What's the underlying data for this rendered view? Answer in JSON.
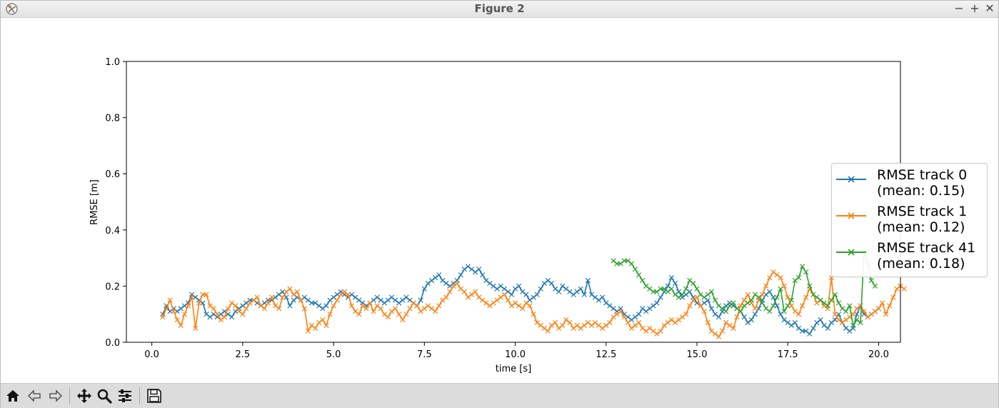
{
  "window": {
    "title": "Figure 2",
    "controls": {
      "minimize": "−",
      "maximize": "+",
      "close": "✕"
    }
  },
  "toolbar": {
    "buttons": [
      {
        "name": "home-button",
        "icon": "home-icon"
      },
      {
        "name": "back-button",
        "icon": "arrow-left-icon"
      },
      {
        "name": "forward-button",
        "icon": "arrow-right-icon"
      },
      {
        "name": "pan-button",
        "icon": "move-icon"
      },
      {
        "name": "zoom-button",
        "icon": "magnifier-icon"
      },
      {
        "name": "configure-subplots-button",
        "icon": "sliders-icon"
      },
      {
        "name": "save-button",
        "icon": "floppy-disk-icon"
      }
    ]
  },
  "chart_data": {
    "type": "line",
    "title": "",
    "xlabel": "time [s]",
    "ylabel": "RMSE [m]",
    "xlim": [
      -0.7,
      20.6
    ],
    "ylim": [
      0.0,
      1.0
    ],
    "x_ticks": [
      "0.0",
      "2.5",
      "5.0",
      "7.5",
      "10.0",
      "12.5",
      "15.0",
      "17.5",
      "20.0"
    ],
    "y_ticks": [
      "0.0",
      "0.2",
      "0.4",
      "0.6",
      "0.8",
      "1.0"
    ],
    "grid": false,
    "marker": "x",
    "legend_position": "center-right",
    "series": [
      {
        "name": "RMSE track 0",
        "legend_label": "RMSE track 0\n(mean: 0.15)",
        "color": "#1f77b4",
        "x_start": 0.3,
        "x_step": 0.1,
        "y": [
          0.1,
          0.13,
          0.11,
          0.12,
          0.11,
          0.12,
          0.13,
          0.14,
          0.17,
          0.16,
          0.15,
          0.14,
          0.1,
          0.09,
          0.1,
          0.09,
          0.1,
          0.11,
          0.1,
          0.09,
          0.11,
          0.12,
          0.13,
          0.14,
          0.15,
          0.15,
          0.14,
          0.13,
          0.14,
          0.15,
          0.15,
          0.16,
          0.17,
          0.18,
          0.16,
          0.13,
          0.15,
          0.16,
          0.15,
          0.16,
          0.15,
          0.14,
          0.14,
          0.13,
          0.12,
          0.13,
          0.15,
          0.16,
          0.17,
          0.18,
          0.17,
          0.16,
          0.17,
          0.16,
          0.15,
          0.14,
          0.13,
          0.14,
          0.15,
          0.16,
          0.15,
          0.14,
          0.15,
          0.16,
          0.15,
          0.14,
          0.15,
          0.16,
          0.15,
          0.14,
          0.13,
          0.15,
          0.19,
          0.21,
          0.22,
          0.23,
          0.24,
          0.22,
          0.21,
          0.2,
          0.21,
          0.22,
          0.24,
          0.26,
          0.27,
          0.26,
          0.25,
          0.26,
          0.24,
          0.22,
          0.21,
          0.2,
          0.19,
          0.2,
          0.19,
          0.18,
          0.17,
          0.19,
          0.2,
          0.18,
          0.17,
          0.15,
          0.16,
          0.17,
          0.19,
          0.21,
          0.22,
          0.21,
          0.19,
          0.18,
          0.2,
          0.19,
          0.18,
          0.17,
          0.18,
          0.19,
          0.17,
          0.22,
          0.17,
          0.16,
          0.15,
          0.16,
          0.14,
          0.13,
          0.12,
          0.11,
          0.12,
          0.1,
          0.09,
          0.08,
          0.09,
          0.1,
          0.12,
          0.11,
          0.12,
          0.13,
          0.14,
          0.16,
          0.18,
          0.2,
          0.23,
          0.21,
          0.18,
          0.16,
          0.17,
          0.18,
          0.16,
          0.14,
          0.13,
          0.14,
          0.15,
          0.12,
          0.1,
          0.09,
          0.11,
          0.13,
          0.14,
          0.13,
          0.12,
          0.11,
          0.09,
          0.07,
          0.08,
          0.1,
          0.12,
          0.15,
          0.17,
          0.18,
          0.16,
          0.13,
          0.1,
          0.08,
          0.07,
          0.06,
          0.07,
          0.05,
          0.04,
          0.04,
          0.03,
          0.05,
          0.07,
          0.08,
          0.06,
          0.05,
          0.07,
          0.08,
          0.1,
          0.07,
          0.05,
          0.04,
          0.05,
          0.1,
          0.13,
          0.1,
          0.09,
          0.1,
          0.11,
          0.12
        ]
      },
      {
        "name": "RMSE track 1",
        "legend_label": "RMSE track 1\n(mean: 0.12)",
        "color": "#ff7f0e",
        "x_start": 0.3,
        "x_step": 0.1,
        "y": [
          0.09,
          0.12,
          0.15,
          0.11,
          0.08,
          0.06,
          0.1,
          0.13,
          0.16,
          0.05,
          0.14,
          0.17,
          0.17,
          0.13,
          0.12,
          0.1,
          0.08,
          0.09,
          0.12,
          0.14,
          0.13,
          0.11,
          0.1,
          0.12,
          0.14,
          0.15,
          0.16,
          0.13,
          0.12,
          0.14,
          0.16,
          0.13,
          0.12,
          0.16,
          0.18,
          0.19,
          0.17,
          0.18,
          0.15,
          0.12,
          0.04,
          0.06,
          0.05,
          0.07,
          0.08,
          0.06,
          0.1,
          0.13,
          0.15,
          0.17,
          0.18,
          0.17,
          0.13,
          0.11,
          0.1,
          0.13,
          0.12,
          0.14,
          0.11,
          0.13,
          0.12,
          0.1,
          0.09,
          0.11,
          0.12,
          0.1,
          0.08,
          0.1,
          0.12,
          0.14,
          0.13,
          0.11,
          0.12,
          0.13,
          0.12,
          0.11,
          0.13,
          0.15,
          0.16,
          0.18,
          0.2,
          0.21,
          0.19,
          0.18,
          0.16,
          0.17,
          0.18,
          0.16,
          0.15,
          0.14,
          0.13,
          0.14,
          0.15,
          0.16,
          0.17,
          0.15,
          0.13,
          0.14,
          0.13,
          0.12,
          0.14,
          0.13,
          0.1,
          0.07,
          0.06,
          0.05,
          0.04,
          0.06,
          0.07,
          0.05,
          0.06,
          0.08,
          0.07,
          0.05,
          0.06,
          0.05,
          0.06,
          0.07,
          0.06,
          0.07,
          0.06,
          0.05,
          0.06,
          0.07,
          0.09,
          0.1,
          0.11,
          0.09,
          0.07,
          0.05,
          0.06,
          0.07,
          0.05,
          0.04,
          0.05,
          0.04,
          0.03,
          0.04,
          0.06,
          0.07,
          0.08,
          0.07,
          0.08,
          0.09,
          0.1,
          0.13,
          0.15,
          0.16,
          0.13,
          0.11,
          0.07,
          0.04,
          0.03,
          0.02,
          0.04,
          0.07,
          0.06,
          0.05,
          0.09,
          0.13,
          0.15,
          0.17,
          0.14,
          0.12,
          0.15,
          0.17,
          0.2,
          0.23,
          0.25,
          0.24,
          0.23,
          0.2,
          0.16,
          0.13,
          0.11,
          0.1,
          0.13,
          0.16,
          0.19,
          0.17,
          0.14,
          0.15,
          0.13,
          0.12,
          0.23,
          0.1,
          0.08,
          0.07,
          0.08,
          0.09,
          0.1,
          0.12,
          0.13,
          0.11,
          0.09,
          0.1,
          0.11,
          0.12,
          0.14,
          0.1,
          0.13,
          0.16,
          0.19,
          0.2,
          0.19
        ]
      },
      {
        "name": "RMSE track 41",
        "legend_label": "RMSE track 41\n(mean: 0.18)",
        "color": "#2ca02c",
        "x_start": 12.7,
        "x_step": 0.1,
        "y": [
          0.29,
          0.28,
          0.28,
          0.29,
          0.29,
          0.28,
          0.26,
          0.24,
          0.22,
          0.2,
          0.19,
          0.18,
          0.18,
          0.19,
          0.19,
          0.18,
          0.19,
          0.17,
          0.16,
          0.17,
          0.19,
          0.22,
          0.21,
          0.19,
          0.17,
          0.16,
          0.17,
          0.18,
          0.15,
          0.13,
          0.12,
          0.11,
          0.13,
          0.14,
          0.12,
          0.11,
          0.13,
          0.14,
          0.15,
          0.17,
          0.16,
          0.14,
          0.12,
          0.11,
          0.13,
          0.16,
          0.19,
          0.11,
          0.13,
          0.15,
          0.22,
          0.23,
          0.27,
          0.25,
          0.2,
          0.17,
          0.16,
          0.15,
          0.14,
          0.13,
          0.15,
          0.17,
          0.14,
          0.12,
          0.11,
          0.13,
          0.06,
          0.08,
          0.07,
          0.32,
          0.28,
          0.22,
          0.2
        ]
      }
    ]
  }
}
